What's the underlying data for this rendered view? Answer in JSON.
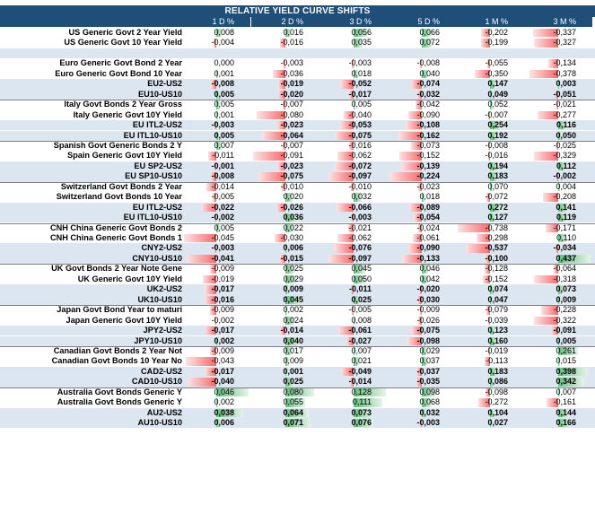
{
  "title": "RELATIVE YIELD CURVE SHIFTS",
  "columns": [
    "1 D %",
    "2 D %",
    "3 D %",
    "5 D %",
    "1 M %",
    "3 M %"
  ],
  "rows": [
    {
      "label": "US Generic Govt 2 Year Yield",
      "values": [
        "0,008",
        "0,016",
        "0,056",
        "0,066",
        "-0,202",
        "-0,337"
      ]
    },
    {
      "label": "US Generic Govt 10 Year Yield",
      "values": [
        "-0,004",
        "-0,016",
        "0,035",
        "0,072",
        "-0,199",
        "-0,327"
      ]
    },
    {
      "label": "",
      "values": [
        "",
        "",
        "",
        "",
        "",
        ""
      ],
      "blank": true
    },
    {
      "label": "Euro Generic Govt Bond 2 Year",
      "values": [
        "0,000",
        "-0,003",
        "-0,003",
        "-0,008",
        "-0,055",
        "-0,134"
      ]
    },
    {
      "label": "Euro Generic Govt Bond 10 Year",
      "values": [
        "0,001",
        "-0,036",
        "0,018",
        "0,040",
        "-0,350",
        "-0,378"
      ]
    },
    {
      "label": "EU2-US2",
      "values": [
        "-0,008",
        "-0,019",
        "-0,052",
        "-0,074",
        "0,147",
        "0,003"
      ],
      "spread": true
    },
    {
      "label": "EU10-US10",
      "values": [
        "0,005",
        "-0,020",
        "-0,017",
        "-0,032",
        "0,049",
        "-0,051"
      ],
      "spread": true
    },
    {
      "label": "Italy Govt Bonds 2 Year Gross",
      "values": [
        "0,005",
        "-0,007",
        "0,005",
        "-0,042",
        "0,052",
        "-0,021"
      ]
    },
    {
      "label": "Italy Generic Govt 10Y Yield",
      "values": [
        "0,001",
        "-0,080",
        "-0,040",
        "-0,090",
        "-0,007",
        "-0,277"
      ]
    },
    {
      "label": "EU ITL2-US2",
      "values": [
        "-0,003",
        "-0,023",
        "-0,053",
        "-0,108",
        "0,254",
        "0,116"
      ],
      "spread": true
    },
    {
      "label": "EU ITL10-US10",
      "values": [
        "0,005",
        "-0,064",
        "-0,075",
        "-0,162",
        "0,192",
        "0,050"
      ],
      "spread": true
    },
    {
      "label": "Spanish Govt Generic Bonds 2 Y",
      "values": [
        "0,007",
        "-0,007",
        "-0,016",
        "-0,073",
        "-0,008",
        "-0,025"
      ]
    },
    {
      "label": "Spain Generic Govt 10Y Yield",
      "values": [
        "-0,011",
        "-0,091",
        "-0,062",
        "-0,152",
        "-0,016",
        "-0,329"
      ]
    },
    {
      "label": "EU SP2-US2",
      "values": [
        "-0,001",
        "-0,023",
        "-0,072",
        "-0,139",
        "0,194",
        "0,112"
      ],
      "spread": true
    },
    {
      "label": "EU SP10-US10",
      "values": [
        "-0,008",
        "-0,075",
        "-0,097",
        "-0,224",
        "0,183",
        "-0,002"
      ],
      "spread": true
    },
    {
      "label": "Switzerland Govt Bonds 2 Year",
      "values": [
        "-0,014",
        "-0,010",
        "-0,010",
        "-0,023",
        "0,070",
        "0,004"
      ]
    },
    {
      "label": "Switzerland Govt Bonds 10 Year",
      "values": [
        "-0,005",
        "0,020",
        "0,032",
        "0,018",
        "-0,072",
        "-0,208"
      ]
    },
    {
      "label": "EU ITL2-US2",
      "values": [
        "-0,022",
        "-0,026",
        "-0,066",
        "-0,089",
        "0,272",
        "0,141"
      ],
      "spread": true
    },
    {
      "label": "EU ITL10-US10",
      "values": [
        "-0,002",
        "0,036",
        "-0,003",
        "-0,054",
        "0,127",
        "0,119"
      ],
      "spread": true
    },
    {
      "label": "CNH China Generic Govt Bonds 2",
      "values": [
        "0,005",
        "0,022",
        "-0,021",
        "-0,024",
        "-0,738",
        "-0,171"
      ]
    },
    {
      "label": "CNH China Generic Govt Bonds 1",
      "values": [
        "-0,045",
        "-0,030",
        "-0,062",
        "-0,061",
        "-0,298",
        "0,110"
      ]
    },
    {
      "label": "CNY2-US2",
      "values": [
        "-0,003",
        "0,006",
        "-0,076",
        "-0,090",
        "-0,537",
        "-0,034"
      ],
      "spread": true
    },
    {
      "label": "CNY10-US10",
      "values": [
        "-0,041",
        "-0,015",
        "-0,097",
        "-0,133",
        "-0,100",
        "0,437"
      ],
      "spread": true
    },
    {
      "label": "UK Govt Bonds 2 Year Note Gene",
      "values": [
        "-0,009",
        "0,025",
        "0,045",
        "0,046",
        "-0,128",
        "-0,064"
      ]
    },
    {
      "label": "UK Generic Govt 10Y Yield",
      "values": [
        "-0,019",
        "0,029",
        "0,050",
        "0,042",
        "-0,152",
        "-0,318"
      ]
    },
    {
      "label": "UK2-US2",
      "values": [
        "-0,017",
        "0,009",
        "-0,011",
        "-0,020",
        "0,074",
        "0,073"
      ],
      "spread": true
    },
    {
      "label": "UK10-US10",
      "values": [
        "-0,016",
        "0,045",
        "0,025",
        "-0,030",
        "0,047",
        "0,009"
      ],
      "spread": true
    },
    {
      "label": "Japan Govt Bond Year to maturi",
      "values": [
        "-0,009",
        "0,002",
        "-0,005",
        "-0,009",
        "-0,079",
        "-0,228"
      ]
    },
    {
      "label": "Japan Generic Govt 10Y Yield",
      "values": [
        "-0,002",
        "0,024",
        "0,008",
        "-0,026",
        "-0,039",
        "-0,322"
      ]
    },
    {
      "label": "JPY2-US2",
      "values": [
        "-0,017",
        "-0,014",
        "-0,061",
        "-0,075",
        "0,123",
        "-0,091"
      ],
      "spread": true
    },
    {
      "label": "JPY10-US10",
      "values": [
        "0,002",
        "0,040",
        "-0,027",
        "-0,098",
        "0,160",
        "0,005"
      ],
      "spread": true
    },
    {
      "label": "Canadian Govt Bonds 2 Year Not",
      "values": [
        "-0,009",
        "0,017",
        "0,007",
        "0,029",
        "-0,019",
        "0,261"
      ]
    },
    {
      "label": "Canadian Govt Bonds 10 Year No",
      "values": [
        "-0,043",
        "0,009",
        "0,021",
        "0,037",
        "-0,113",
        "0,015"
      ]
    },
    {
      "label": "CAD2-US2",
      "values": [
        "-0,017",
        "0,001",
        "-0,049",
        "-0,037",
        "0,183",
        "0,398"
      ],
      "spread": true
    },
    {
      "label": "CAD10-US10",
      "values": [
        "-0,040",
        "0,025",
        "-0,014",
        "-0,035",
        "0,086",
        "0,342"
      ],
      "spread": true
    },
    {
      "label": "Australia Govt Bonds Generic Y",
      "values": [
        "0,046",
        "0,080",
        "0,128",
        "0,098",
        "-0,098",
        "0,007"
      ]
    },
    {
      "label": "Australia Govt Bonds Generic Y",
      "values": [
        "0,002",
        "0,055",
        "0,111",
        "0,068",
        "-0,272",
        "-0,161"
      ]
    },
    {
      "label": "AU2-US2",
      "values": [
        "0,038",
        "0,064",
        "0,073",
        "0,032",
        "0,104",
        "0,144"
      ],
      "spread": true
    },
    {
      "label": "AU10-US10",
      "values": [
        "0,006",
        "0,071",
        "0,076",
        "-0,003",
        "0,027",
        "0,166"
      ],
      "spread": true
    }
  ]
}
